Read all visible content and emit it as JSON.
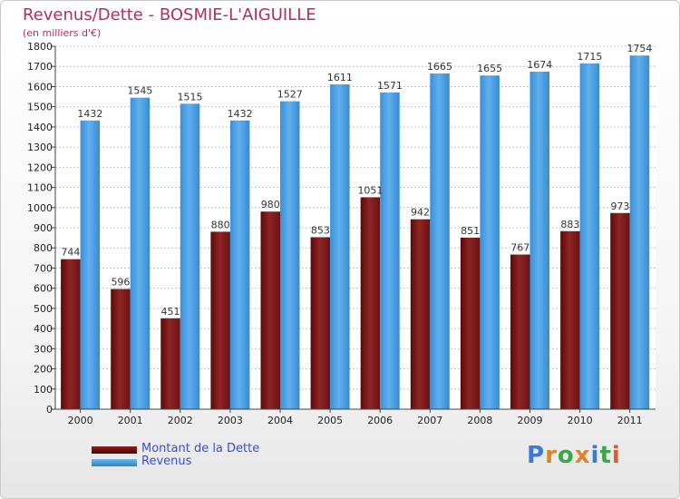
{
  "title": "Revenus/Dette - BOSMIE-L'AIGUILLE",
  "subtitle": "(en milliers d'€)",
  "legend": {
    "dette_label": "Montant de la Dette",
    "revenus_label": "Revenus"
  },
  "logo": {
    "text": "Proxiti"
  },
  "colors": {
    "dette": "#7a1a1a",
    "revenus": "#4a9fe0",
    "title": "#b0305a"
  },
  "chart_data": {
    "type": "bar",
    "title": "Revenus/Dette - BOSMIE-L'AIGUILLE",
    "ylabel": "(en milliers d'€)",
    "xlabel": "",
    "ylim": [
      0,
      1800
    ],
    "yticks": [
      0,
      100,
      200,
      300,
      400,
      500,
      600,
      700,
      800,
      900,
      1000,
      1100,
      1200,
      1300,
      1400,
      1500,
      1600,
      1700,
      1800
    ],
    "grid": true,
    "legend_position": "bottom-left",
    "categories": [
      "2000",
      "2001",
      "2002",
      "2003",
      "2004",
      "2005",
      "2006",
      "2007",
      "2008",
      "2009",
      "2010",
      "2011"
    ],
    "series": [
      {
        "name": "Montant de la Dette",
        "values": [
          744,
          596,
          451,
          880,
          980,
          853,
          1051,
          942,
          851,
          767,
          883,
          973
        ]
      },
      {
        "name": "Revenus",
        "values": [
          1432,
          1545,
          1515,
          1432,
          1527,
          1611,
          1571,
          1665,
          1655,
          1674,
          1715,
          1754
        ]
      }
    ],
    "data_labels": [
      [
        "744",
        "596",
        "451",
        "880",
        "980",
        "853",
        "1051",
        "942",
        "851",
        "767",
        "883",
        "973"
      ],
      [
        "1432",
        "1545",
        "1515",
        "1432",
        "1527",
        "1611",
        "1571",
        "1665",
        "1655",
        "1674",
        "1715",
        "1754"
      ]
    ]
  }
}
